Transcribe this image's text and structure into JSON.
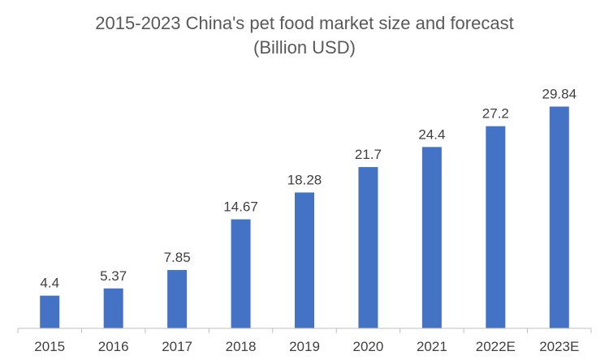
{
  "chart_data": {
    "type": "bar",
    "title_lines": [
      "2015-2023 China's pet food market size and forecast",
      "(Billion USD)"
    ],
    "categories": [
      "2015",
      "2016",
      "2017",
      "2018",
      "2019",
      "2020",
      "2021",
      "2022E",
      "2023E"
    ],
    "values": [
      4.4,
      5.37,
      7.85,
      14.67,
      18.28,
      21.7,
      24.4,
      27.2,
      29.84
    ],
    "value_labels": [
      "4.4",
      "5.37",
      "7.85",
      "14.67",
      "18.28",
      "21.7",
      "24.4",
      "27.2",
      "29.84"
    ],
    "ylim": [
      0,
      30
    ],
    "grid": false,
    "legend": "none",
    "colors": {
      "bar": "#4472C4",
      "axis": "#BFBFBF",
      "text": "#404040",
      "title": "#595959"
    }
  }
}
